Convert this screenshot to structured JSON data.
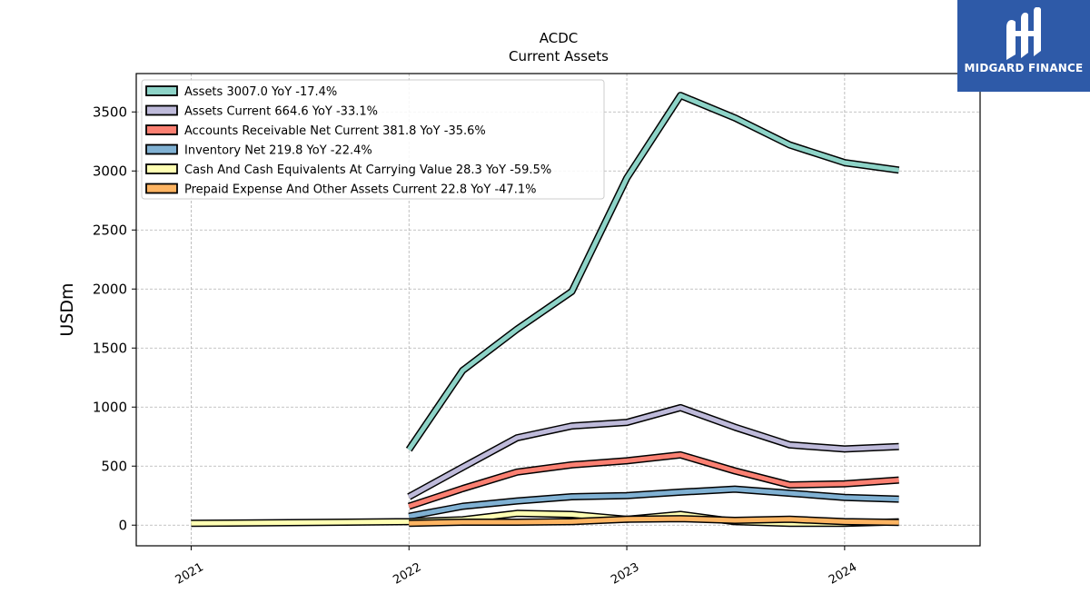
{
  "brand": {
    "name": "MIDGARD FINANCE",
    "color": "#2e5aa8"
  },
  "chart_data": {
    "type": "line",
    "title": "ACDC",
    "subtitle": "Current  Assets",
    "xlabel": "",
    "ylabel": "USDm",
    "x_ticks": [
      "2021",
      "2022",
      "2023",
      "2024"
    ],
    "y_ticks": [
      "0",
      "500",
      "1000",
      "1500",
      "2000",
      "2500",
      "3000",
      "3500"
    ],
    "xlim": [
      "2020-10-01",
      "2024-08-15"
    ],
    "ylim": [
      -175,
      3825
    ],
    "grid": true,
    "legend_position": "top-left",
    "series": [
      {
        "name": "Assets  3007.0 YoY -17.4%",
        "color": "#8dd3c7",
        "points": [
          [
            "2022-01-01",
            640
          ],
          [
            "2022-04-01",
            1310
          ],
          [
            "2022-07-01",
            1660
          ],
          [
            "2022-10-01",
            1980
          ],
          [
            "2023-01-01",
            2940
          ],
          [
            "2023-04-01",
            3640
          ],
          [
            "2023-07-01",
            3450
          ],
          [
            "2023-10-01",
            3220
          ],
          [
            "2024-01-01",
            3070
          ],
          [
            "2024-04-01",
            3007
          ]
        ]
      },
      {
        "name": "Assets Current  664.6 YoY -33.1%",
        "color": "#bebada",
        "points": [
          [
            "2022-01-01",
            240
          ],
          [
            "2022-04-01",
            490
          ],
          [
            "2022-07-01",
            740
          ],
          [
            "2022-10-01",
            840
          ],
          [
            "2023-01-01",
            870
          ],
          [
            "2023-04-01",
            995
          ],
          [
            "2023-07-01",
            830
          ],
          [
            "2023-10-01",
            680
          ],
          [
            "2024-01-01",
            645
          ],
          [
            "2024-04-01",
            665
          ]
        ]
      },
      {
        "name": "Accounts Receivable Net Current  381.8 YoY -35.6%",
        "color": "#fb8072",
        "points": [
          [
            "2022-01-01",
            160
          ],
          [
            "2022-04-01",
            310
          ],
          [
            "2022-07-01",
            450
          ],
          [
            "2022-10-01",
            510
          ],
          [
            "2023-01-01",
            545
          ],
          [
            "2023-04-01",
            595
          ],
          [
            "2023-07-01",
            460
          ],
          [
            "2023-10-01",
            340
          ],
          [
            "2024-01-01",
            350
          ],
          [
            "2024-04-01",
            382
          ]
        ]
      },
      {
        "name": "Inventory Net  219.8 YoY -22.4%",
        "color": "#80b1d3",
        "points": [
          [
            "2022-01-01",
            75
          ],
          [
            "2022-04-01",
            160
          ],
          [
            "2022-07-01",
            205
          ],
          [
            "2022-10-01",
            240
          ],
          [
            "2023-01-01",
            250
          ],
          [
            "2023-04-01",
            280
          ],
          [
            "2023-07-01",
            305
          ],
          [
            "2023-10-01",
            270
          ],
          [
            "2024-01-01",
            235
          ],
          [
            "2024-04-01",
            220
          ]
        ]
      },
      {
        "name": "Cash And Cash Equivalents At Carrying Value  28.3 YoY -59.5%",
        "color": "#ffffb3",
        "points": [
          [
            "2021-01-01",
            15
          ],
          [
            "2022-01-01",
            30
          ],
          [
            "2022-04-01",
            45
          ],
          [
            "2022-07-01",
            100
          ],
          [
            "2022-10-01",
            90
          ],
          [
            "2023-01-01",
            50
          ],
          [
            "2023-04-01",
            90
          ],
          [
            "2023-07-01",
            30
          ],
          [
            "2023-10-01",
            15
          ],
          [
            "2024-01-01",
            15
          ],
          [
            "2024-04-01",
            28
          ]
        ]
      },
      {
        "name": "Prepaid Expense And Other Assets Current  22.8 YoY -47.1%",
        "color": "#fdb462",
        "points": [
          [
            "2022-01-01",
            15
          ],
          [
            "2022-04-01",
            25
          ],
          [
            "2022-07-01",
            25
          ],
          [
            "2022-10-01",
            30
          ],
          [
            "2023-01-01",
            50
          ],
          [
            "2023-04-01",
            55
          ],
          [
            "2023-07-01",
            40
          ],
          [
            "2023-10-01",
            50
          ],
          [
            "2024-01-01",
            30
          ],
          [
            "2024-04-01",
            23
          ]
        ]
      }
    ]
  }
}
